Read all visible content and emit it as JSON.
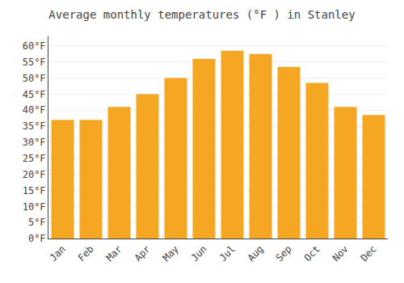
{
  "chart_data": {
    "type": "bar",
    "title": "Average monthly temperatures (°F ) in Stanley",
    "categories": [
      "Jan",
      "Feb",
      "Mar",
      "Apr",
      "May",
      "Jun",
      "Jul",
      "Aug",
      "Sep",
      "Oct",
      "Nov",
      "Dec"
    ],
    "values": [
      37,
      37,
      41,
      45,
      50,
      56,
      58.5,
      57.5,
      53.5,
      48.5,
      41,
      38.5
    ],
    "color": "#F5A623",
    "ylim": [
      0,
      63
    ],
    "yticks": [
      {
        "value": 0,
        "label": "0°F"
      },
      {
        "value": 5,
        "label": "5°F"
      },
      {
        "value": 10,
        "label": "10°F"
      },
      {
        "value": 15,
        "label": "15°F"
      },
      {
        "value": 20,
        "label": "20°F"
      },
      {
        "value": 25,
        "label": "25°F"
      },
      {
        "value": 30,
        "label": "30°F"
      },
      {
        "value": 35,
        "label": "35°F"
      },
      {
        "value": 40,
        "label": "40°F"
      },
      {
        "value": 45,
        "label": "45°F"
      },
      {
        "value": 50,
        "label": "50°F"
      },
      {
        "value": 55,
        "label": "55°F"
      },
      {
        "value": 60,
        "label": "60°F"
      }
    ],
    "grid": true
  }
}
